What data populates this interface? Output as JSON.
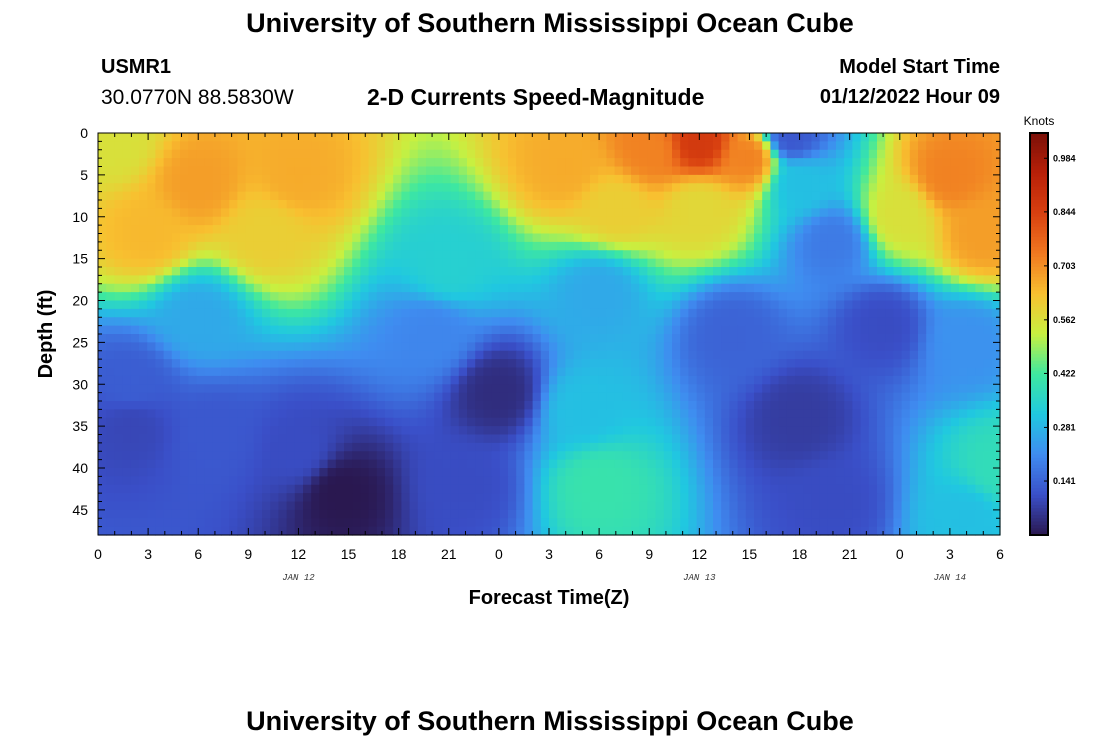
{
  "header": {
    "title": "University of Southern Mississippi Ocean Cube",
    "station": "USMR1",
    "coordinates": "30.0770N  88.5830W",
    "subtitle": "2-D Currents Speed-Magnitude",
    "model_start_label": "Model Start Time",
    "model_start_value": "01/12/2022 Hour 09"
  },
  "footer": {
    "title": "University of Southern Mississippi Ocean Cube"
  },
  "chart_data": {
    "type": "heatmap",
    "title": "2-D Currents Speed-Magnitude",
    "xlabel": "Forecast Time(Z)",
    "ylabel": "Depth (ft)",
    "x_ticks": [
      "0",
      "3",
      "6",
      "9",
      "12",
      "15",
      "18",
      "21",
      "0",
      "3",
      "6",
      "9",
      "12",
      "15",
      "18",
      "21",
      "0",
      "3",
      "6"
    ],
    "x_range_hours": [
      0,
      54
    ],
    "date_labels": [
      {
        "label": "JAN 12",
        "hour": 12
      },
      {
        "label": "JAN 13",
        "hour": 36
      },
      {
        "label": "JAN 14",
        "hour": 51
      }
    ],
    "y_ticks": [
      "0",
      "5",
      "10",
      "15",
      "20",
      "25",
      "30",
      "35",
      "40",
      "45"
    ],
    "y_range_ft": [
      0,
      48
    ],
    "colorbar": {
      "unit": "Knots",
      "range": [
        0.0,
        1.05
      ],
      "ticks": [
        "0.984",
        "0.844",
        "0.703",
        "0.562",
        "0.422",
        "0.281",
        "0.141"
      ],
      "colors": [
        "#2a1850",
        "#3a4fc8",
        "#3f8cf0",
        "#20c8e0",
        "#3ee8a0",
        "#c8f040",
        "#f8c030",
        "#f07820",
        "#d84010",
        "#b82008",
        "#7a1008"
      ]
    },
    "field_sources": [
      {
        "hour": 6,
        "depth": 6,
        "value": 0.68
      },
      {
        "hour": 12,
        "depth": 5,
        "value": 0.66
      },
      {
        "hour": 3,
        "depth": 12,
        "value": 0.64
      },
      {
        "hour": 10,
        "depth": 12,
        "value": 0.6
      },
      {
        "hour": 1,
        "depth": 1,
        "value": 0.56
      },
      {
        "hour": 28,
        "depth": 4,
        "value": 0.66
      },
      {
        "hour": 33,
        "depth": 2,
        "value": 0.72
      },
      {
        "hour": 36,
        "depth": 1,
        "value": 0.86
      },
      {
        "hour": 39,
        "depth": 3,
        "value": 0.72
      },
      {
        "hour": 31,
        "depth": 9,
        "value": 0.6
      },
      {
        "hour": 36,
        "depth": 9,
        "value": 0.58
      },
      {
        "hour": 51,
        "depth": 5,
        "value": 0.72
      },
      {
        "hour": 53,
        "depth": 12,
        "value": 0.68
      },
      {
        "hour": 48,
        "depth": 10,
        "value": 0.56
      },
      {
        "hour": 41.5,
        "depth": 0.5,
        "value": 0.12
      },
      {
        "hour": 42,
        "depth": 6,
        "value": 0.3
      },
      {
        "hour": 44,
        "depth": 13,
        "value": 0.18
      },
      {
        "hour": 47,
        "depth": 23,
        "value": 0.1
      },
      {
        "hour": 2,
        "depth": 30,
        "value": 0.13
      },
      {
        "hour": 2,
        "depth": 35,
        "value": 0.09
      },
      {
        "hour": 7,
        "depth": 36,
        "value": 0.12
      },
      {
        "hour": 14.5,
        "depth": 43,
        "value": 0.0
      },
      {
        "hour": 12,
        "depth": 38,
        "value": 0.1
      },
      {
        "hour": 24,
        "depth": 31,
        "value": 0.04
      },
      {
        "hour": 22,
        "depth": 42,
        "value": 0.1
      },
      {
        "hour": 30,
        "depth": 42,
        "value": 0.4
      },
      {
        "hour": 29,
        "depth": 33,
        "value": 0.3
      },
      {
        "hour": 42,
        "depth": 34,
        "value": 0.07
      },
      {
        "hour": 38,
        "depth": 24,
        "value": 0.14
      },
      {
        "hour": 44,
        "depth": 44,
        "value": 0.1
      },
      {
        "hour": 54,
        "depth": 40,
        "value": 0.38
      },
      {
        "hour": 52,
        "depth": 46,
        "value": 0.3
      },
      {
        "hour": 6,
        "depth": 22,
        "value": 0.26
      },
      {
        "hour": 21,
        "depth": 16,
        "value": 0.34
      },
      {
        "hour": 30,
        "depth": 19,
        "value": 0.26
      },
      {
        "hour": 20,
        "depth": 24,
        "value": 0.2
      },
      {
        "hour": 52,
        "depth": 25,
        "value": 0.22
      }
    ]
  }
}
